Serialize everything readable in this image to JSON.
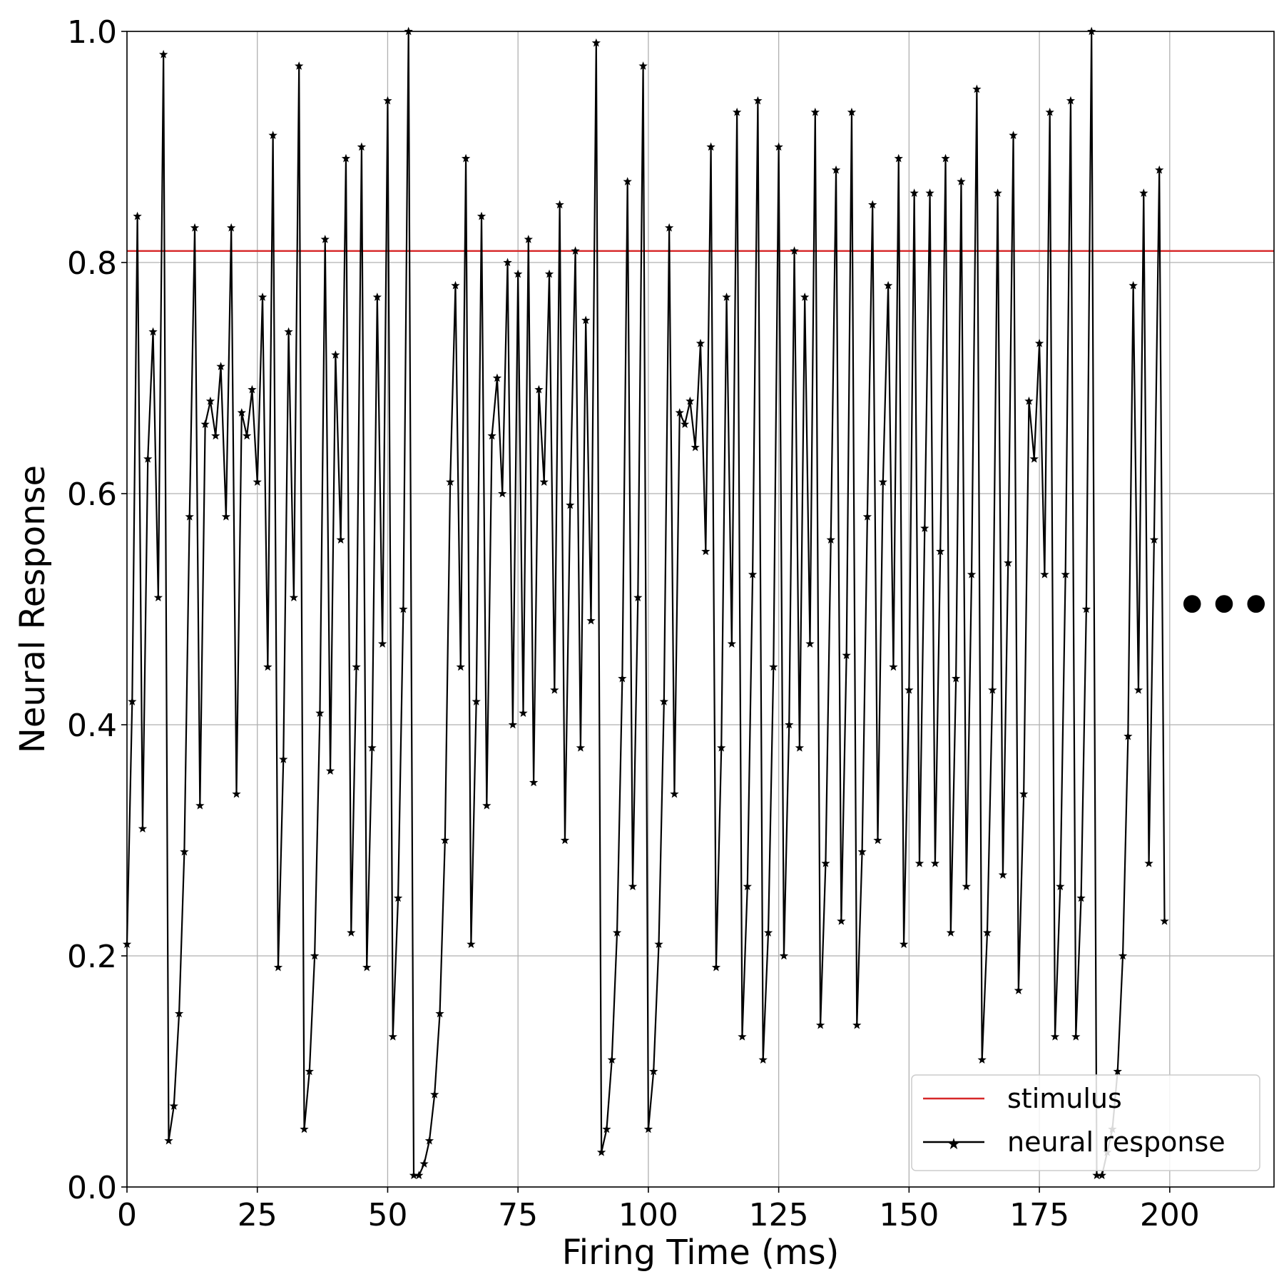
{
  "chart_data": {
    "type": "line",
    "xlabel": "Firing Time (ms)",
    "ylabel": "Neural Response",
    "xlim": [
      0,
      220
    ],
    "ylim": [
      0,
      1.0
    ],
    "xticks": [
      0,
      25,
      50,
      75,
      100,
      125,
      150,
      175,
      200
    ],
    "xtick_labels": [
      "0",
      "25",
      "50",
      "75",
      "100",
      "125",
      "150",
      "175",
      "200"
    ],
    "yticks": [
      0.0,
      0.2,
      0.4,
      0.6,
      0.8,
      1.0
    ],
    "ytick_labels": [
      "0.0",
      "0.2",
      "0.4",
      "0.6",
      "0.8",
      "1.0"
    ],
    "grid": true,
    "legend_position": "lower-right",
    "continuation_marker": "•••",
    "continuation_y": 0.5,
    "series": [
      {
        "name": "stimulus",
        "kind": "hline",
        "color": "#d62728",
        "y": 0.81
      },
      {
        "name": "neural response",
        "kind": "line",
        "marker": "star",
        "color": "#000000",
        "x": [
          0,
          1,
          2,
          3,
          4,
          5,
          6,
          7,
          8,
          9,
          10,
          11,
          12,
          13,
          14,
          15,
          16,
          17,
          18,
          19,
          20,
          21,
          22,
          23,
          24,
          25,
          26,
          27,
          28,
          29,
          30,
          31,
          32,
          33,
          34,
          35,
          36,
          37,
          38,
          39,
          40,
          41,
          42,
          43,
          44,
          45,
          46,
          47,
          48,
          49,
          50,
          51,
          52,
          53,
          54,
          55,
          56,
          57,
          58,
          59,
          60,
          61,
          62,
          63,
          64,
          65,
          66,
          67,
          68,
          69,
          70,
          71,
          72,
          73,
          74,
          75,
          76,
          77,
          78,
          79,
          80,
          81,
          82,
          83,
          84,
          85,
          86,
          87,
          88,
          89,
          90,
          91,
          92,
          93,
          94,
          95,
          96,
          97,
          98,
          99,
          100,
          101,
          102,
          103,
          104,
          105,
          106,
          107,
          108,
          109,
          110,
          111,
          112,
          113,
          114,
          115,
          116,
          117,
          118,
          119,
          120,
          121,
          122,
          123,
          124,
          125,
          126,
          127,
          128,
          129,
          130,
          131,
          132,
          133,
          134,
          135,
          136,
          137,
          138,
          139,
          140,
          141,
          142,
          143,
          144,
          145,
          146,
          147,
          148,
          149,
          150,
          151,
          152,
          153,
          154,
          155,
          156,
          157,
          158,
          159,
          160,
          161,
          162,
          163,
          164,
          165,
          166,
          167,
          168,
          169,
          170,
          171,
          172,
          173,
          174,
          175,
          176,
          177,
          178,
          179,
          180,
          181,
          182,
          183,
          184,
          185,
          186,
          187,
          188,
          189,
          190,
          191,
          192,
          193,
          194,
          195,
          196,
          197,
          198,
          199
        ],
        "y": [
          0.21,
          0.42,
          0.84,
          0.31,
          0.63,
          0.74,
          0.51,
          0.98,
          0.04,
          0.07,
          0.15,
          0.29,
          0.58,
          0.83,
          0.33,
          0.66,
          0.68,
          0.65,
          0.71,
          0.58,
          0.83,
          0.34,
          0.67,
          0.65,
          0.69,
          0.61,
          0.77,
          0.45,
          0.91,
          0.19,
          0.37,
          0.74,
          0.51,
          0.97,
          0.05,
          0.1,
          0.2,
          0.41,
          0.82,
          0.36,
          0.72,
          0.56,
          0.89,
          0.22,
          0.45,
          0.9,
          0.19,
          0.38,
          0.77,
          0.47,
          0.94,
          0.13,
          0.25,
          0.5,
          1.0,
          0.01,
          0.01,
          0.02,
          0.04,
          0.08,
          0.15,
          0.3,
          0.61,
          0.78,
          0.45,
          0.89,
          0.21,
          0.42,
          0.84,
          0.33,
          0.65,
          0.7,
          0.6,
          0.8,
          0.4,
          0.79,
          0.41,
          0.82,
          0.35,
          0.69,
          0.61,
          0.79,
          0.43,
          0.85,
          0.3,
          0.59,
          0.81,
          0.38,
          0.75,
          0.49,
          0.99,
          0.03,
          0.05,
          0.11,
          0.22,
          0.44,
          0.87,
          0.26,
          0.51,
          0.97,
          0.05,
          0.1,
          0.21,
          0.42,
          0.83,
          0.34,
          0.67,
          0.66,
          0.68,
          0.64,
          0.73,
          0.55,
          0.9,
          0.19,
          0.38,
          0.77,
          0.47,
          0.93,
          0.13,
          0.26,
          0.53,
          0.94,
          0.11,
          0.22,
          0.45,
          0.9,
          0.2,
          0.4,
          0.81,
          0.38,
          0.77,
          0.47,
          0.93,
          0.14,
          0.28,
          0.56,
          0.88,
          0.23,
          0.46,
          0.93,
          0.14,
          0.29,
          0.58,
          0.85,
          0.3,
          0.61,
          0.78,
          0.45,
          0.89,
          0.21,
          0.43,
          0.86,
          0.28,
          0.57,
          0.86,
          0.28,
          0.55,
          0.89,
          0.22,
          0.44,
          0.87,
          0.26,
          0.53,
          0.95,
          0.11,
          0.22,
          0.43,
          0.86,
          0.27,
          0.54,
          0.91,
          0.17,
          0.34,
          0.68,
          0.63,
          0.73,
          0.53,
          0.93,
          0.13,
          0.26,
          0.53,
          0.94,
          0.13,
          0.25,
          0.5,
          1.0,
          0.01,
          0.01,
          0.03,
          0.05,
          0.1,
          0.2,
          0.39,
          0.78,
          0.43,
          0.86,
          0.28,
          0.56,
          0.88,
          0.23
        ]
      }
    ]
  }
}
